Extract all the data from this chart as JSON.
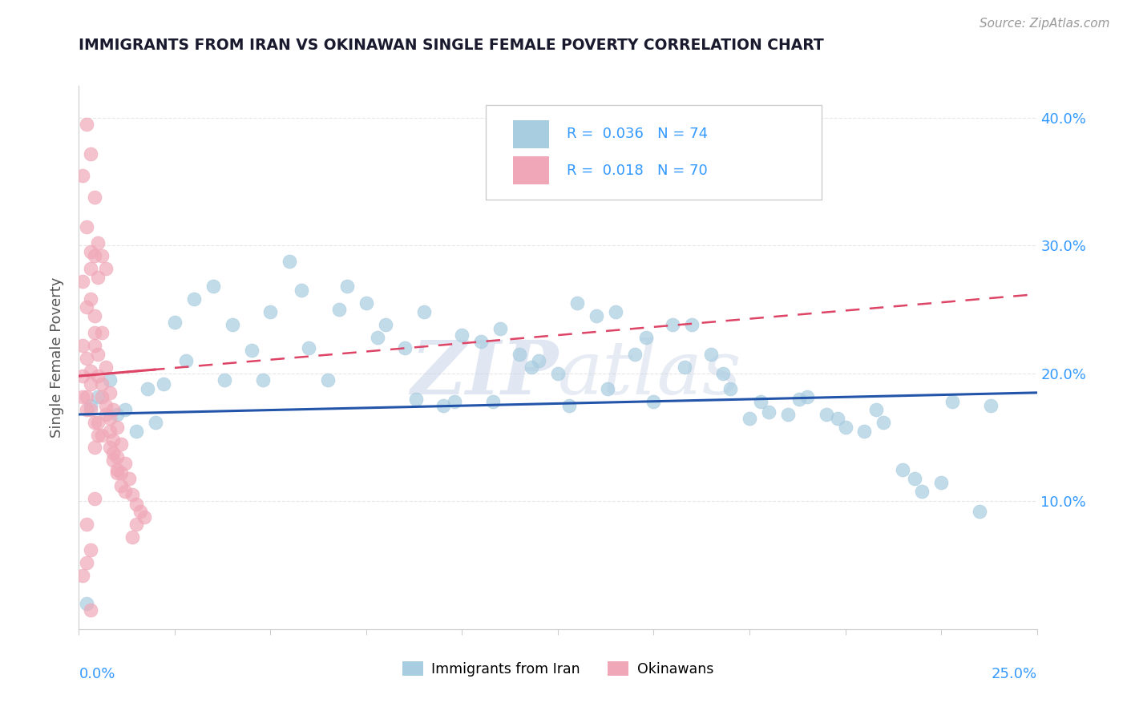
{
  "title": "IMMIGRANTS FROM IRAN VS OKINAWAN SINGLE FEMALE POVERTY CORRELATION CHART",
  "source": "Source: ZipAtlas.com",
  "ylabel": "Single Female Poverty",
  "legend1_R": "0.036",
  "legend1_N": "74",
  "legend2_R": "0.018",
  "legend2_N": "70",
  "blue_color": "#a8cce0",
  "pink_color": "#f0a8b8",
  "line_blue": "#2255aa",
  "line_pink": "#dd4466",
  "text_color_blue": "#3399ff",
  "grid_color": "#e0e0e0",
  "watermark": "ZIPatlas",
  "watermark_color": "#c8d4e8",
  "x_min": 0.0,
  "x_max": 0.25,
  "y_min": 0.0,
  "y_max": 0.425,
  "blue_x": [
    0.003,
    0.005,
    0.008,
    0.01,
    0.012,
    0.015,
    0.018,
    0.02,
    0.022,
    0.025,
    0.028,
    0.03,
    0.035,
    0.038,
    0.04,
    0.045,
    0.048,
    0.05,
    0.055,
    0.058,
    0.06,
    0.065,
    0.068,
    0.07,
    0.075,
    0.078,
    0.08,
    0.085,
    0.088,
    0.09,
    0.095,
    0.098,
    0.1,
    0.105,
    0.108,
    0.11,
    0.115,
    0.118,
    0.12,
    0.125,
    0.128,
    0.13,
    0.135,
    0.138,
    0.14,
    0.145,
    0.148,
    0.15,
    0.155,
    0.158,
    0.16,
    0.165,
    0.168,
    0.17,
    0.175,
    0.178,
    0.18,
    0.185,
    0.188,
    0.19,
    0.195,
    0.198,
    0.2,
    0.205,
    0.208,
    0.21,
    0.215,
    0.218,
    0.22,
    0.225,
    0.228,
    0.235,
    0.238,
    0.002
  ],
  "blue_y": [
    0.175,
    0.182,
    0.195,
    0.168,
    0.172,
    0.155,
    0.188,
    0.162,
    0.192,
    0.24,
    0.21,
    0.258,
    0.268,
    0.195,
    0.238,
    0.218,
    0.195,
    0.248,
    0.288,
    0.265,
    0.22,
    0.195,
    0.25,
    0.268,
    0.255,
    0.228,
    0.238,
    0.22,
    0.18,
    0.248,
    0.175,
    0.178,
    0.23,
    0.225,
    0.178,
    0.235,
    0.215,
    0.205,
    0.21,
    0.2,
    0.175,
    0.255,
    0.245,
    0.188,
    0.248,
    0.215,
    0.228,
    0.178,
    0.238,
    0.205,
    0.238,
    0.215,
    0.2,
    0.188,
    0.165,
    0.178,
    0.17,
    0.168,
    0.18,
    0.182,
    0.168,
    0.165,
    0.158,
    0.155,
    0.172,
    0.162,
    0.125,
    0.118,
    0.108,
    0.115,
    0.178,
    0.092,
    0.175,
    0.02
  ],
  "pink_x": [
    0.002,
    0.003,
    0.001,
    0.004,
    0.002,
    0.003,
    0.005,
    0.003,
    0.004,
    0.006,
    0.004,
    0.005,
    0.007,
    0.005,
    0.006,
    0.008,
    0.006,
    0.007,
    0.009,
    0.007,
    0.008,
    0.01,
    0.008,
    0.009,
    0.011,
    0.009,
    0.01,
    0.012,
    0.01,
    0.011,
    0.013,
    0.011,
    0.012,
    0.014,
    0.015,
    0.016,
    0.017,
    0.015,
    0.014,
    0.003,
    0.002,
    0.004,
    0.003,
    0.005,
    0.004,
    0.001,
    0.002,
    0.003,
    0.004,
    0.002,
    0.001,
    0.003,
    0.004,
    0.005,
    0.006,
    0.007,
    0.005,
    0.006,
    0.008,
    0.009,
    0.01,
    0.002,
    0.001,
    0.003,
    0.002,
    0.004,
    0.001,
    0.002,
    0.001,
    0.003
  ],
  "pink_y": [
    0.395,
    0.372,
    0.355,
    0.338,
    0.315,
    0.295,
    0.275,
    0.258,
    0.245,
    0.232,
    0.222,
    0.215,
    0.205,
    0.198,
    0.192,
    0.185,
    0.182,
    0.175,
    0.172,
    0.168,
    0.165,
    0.158,
    0.155,
    0.148,
    0.145,
    0.138,
    0.135,
    0.13,
    0.125,
    0.122,
    0.118,
    0.112,
    0.108,
    0.105,
    0.098,
    0.092,
    0.088,
    0.082,
    0.072,
    0.192,
    0.182,
    0.162,
    0.172,
    0.152,
    0.142,
    0.222,
    0.212,
    0.202,
    0.232,
    0.252,
    0.272,
    0.282,
    0.292,
    0.302,
    0.292,
    0.282,
    0.162,
    0.152,
    0.142,
    0.132,
    0.122,
    0.052,
    0.042,
    0.062,
    0.082,
    0.102,
    0.198,
    0.172,
    0.182,
    0.015
  ],
  "blue_line_y0": 0.168,
  "blue_line_y1": 0.185,
  "pink_line_y0": 0.198,
  "pink_line_y1": 0.262
}
